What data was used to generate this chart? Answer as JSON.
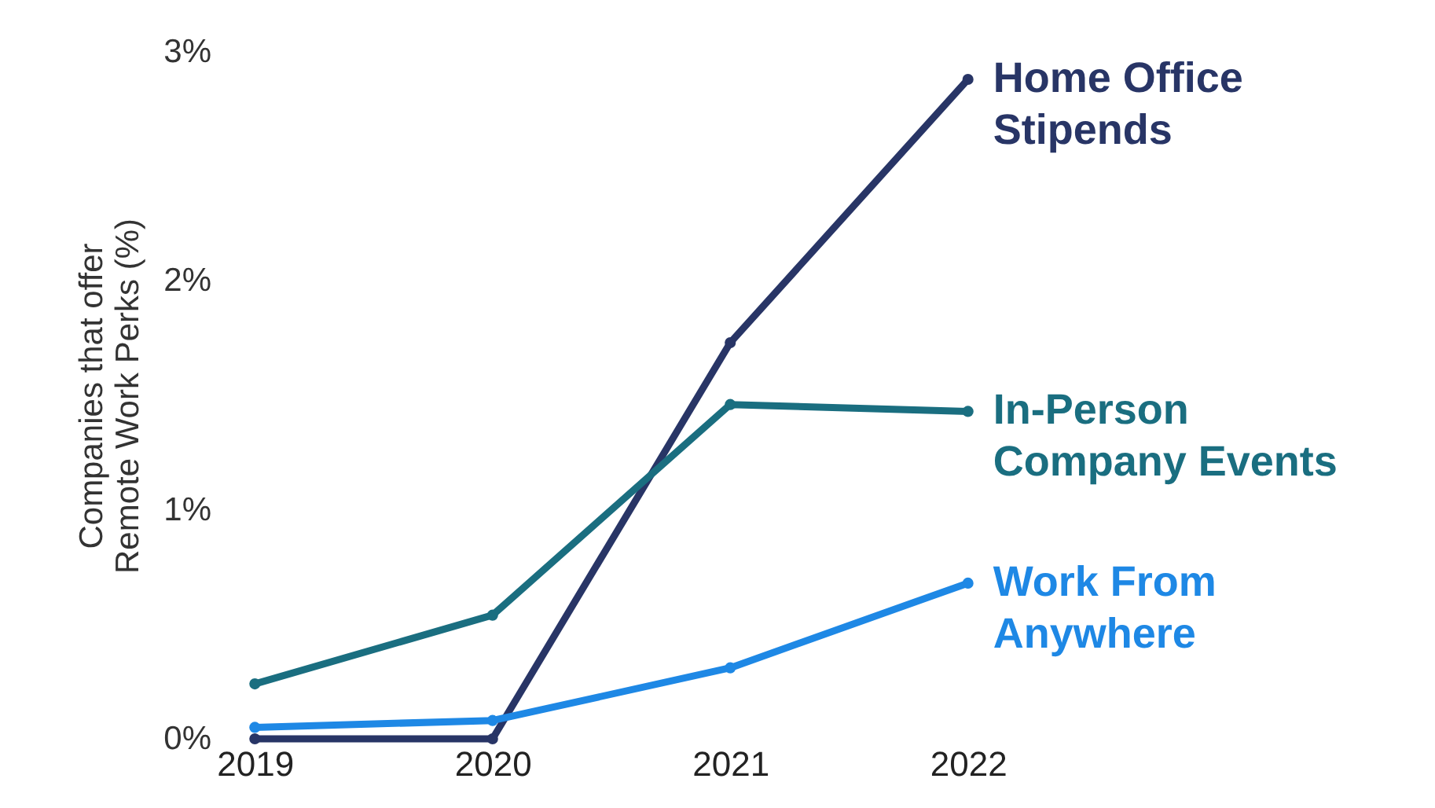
{
  "chart_data": {
    "type": "line",
    "ylabel": "Companies that offer Remote Work Perks (%)",
    "categories": [
      "2019",
      "2020",
      "2021",
      "2022"
    ],
    "series": [
      {
        "name": "Home Office Stipends",
        "color": "#283566",
        "values": [
          0.0,
          0.0,
          1.73,
          2.88
        ]
      },
      {
        "name": "In-Person Company Events",
        "color": "#1a6e80",
        "values": [
          0.24,
          0.54,
          1.46,
          1.43
        ]
      },
      {
        "name": "Work From Anywhere",
        "color": "#1e88e5",
        "values": [
          0.05,
          0.08,
          0.31,
          0.68
        ]
      }
    ],
    "ylim": [
      0,
      3
    ],
    "yticks": [
      {
        "value": 0,
        "label": "0%"
      },
      {
        "value": 1,
        "label": "1%"
      },
      {
        "value": 2,
        "label": "2%"
      },
      {
        "value": 3,
        "label": "3%"
      }
    ],
    "grid": false,
    "legend": false,
    "marker": "circle",
    "line_style": "solid"
  }
}
